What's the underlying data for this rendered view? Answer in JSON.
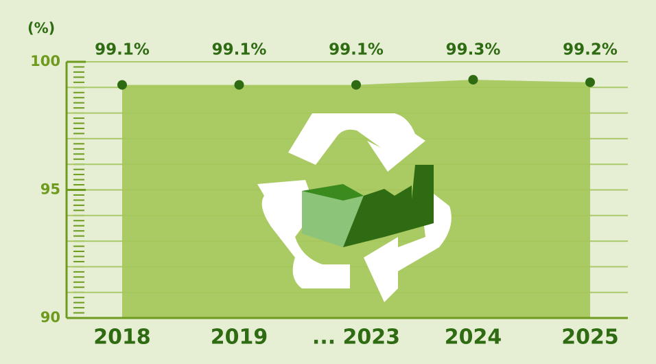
{
  "chart_data": {
    "type": "area",
    "y_label": "(%)",
    "categories": [
      "2018",
      "2019",
      "... 2023",
      "2024",
      "2025"
    ],
    "values": [
      99.1,
      99.1,
      99.1,
      99.3,
      99.2
    ],
    "value_labels": [
      "99.1%",
      "99.1%",
      "99.1%",
      "99.3%",
      "99.2%"
    ],
    "color": "#a5c75a",
    "marker_color": "#2f6b12",
    "ylim": [
      90,
      100
    ],
    "yticks": [
      90,
      95,
      100
    ],
    "minor_yticks": [
      91,
      92,
      93,
      94,
      96,
      97,
      98,
      99
    ],
    "grid": true
  }
}
